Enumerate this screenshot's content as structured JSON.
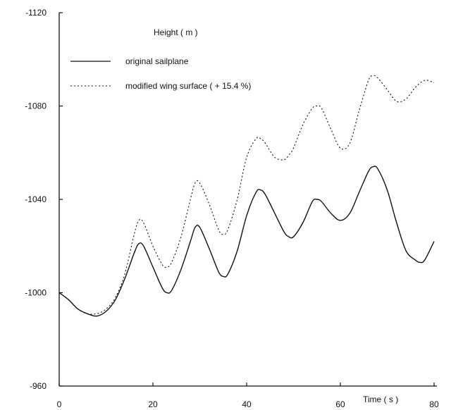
{
  "chart_data": {
    "type": "line",
    "xlabel": "Time ( s )",
    "ylabel": "Height ( m )",
    "xlim": [
      0,
      80
    ],
    "ylim": [
      -960,
      -1120
    ],
    "y_axis_direction": "up_negative",
    "xticks": [
      "0",
      "20",
      "40",
      "60",
      "80"
    ],
    "yticks": [
      "-960",
      "-1000",
      "-1040",
      "-1080",
      "-1120"
    ],
    "grid": false,
    "legend_position": "top-left",
    "series": [
      {
        "name": "original sailplane",
        "style": "solid",
        "x": [
          0,
          2,
          4,
          6,
          8,
          10,
          12,
          14,
          16,
          17,
          18,
          20,
          22,
          23,
          24,
          26,
          28,
          29,
          30,
          32,
          34,
          35,
          36,
          38,
          40,
          42,
          43,
          44,
          46,
          48,
          49,
          50,
          52,
          54,
          55,
          56,
          58,
          60,
          62,
          64,
          66,
          67,
          68,
          70,
          72,
          74,
          76,
          77,
          78,
          80
        ],
        "y": [
          -1000,
          -997,
          -993,
          -991,
          -990,
          -992,
          -997,
          -1006,
          -1017,
          -1021,
          -1020,
          -1011,
          -1002,
          -1000,
          -1001,
          -1010,
          -1022,
          -1028,
          -1028,
          -1019,
          -1009,
          -1007,
          -1008,
          -1018,
          -1033,
          -1043,
          -1044,
          -1042,
          -1034,
          -1026,
          -1024,
          -1024,
          -1030,
          -1039,
          -1040,
          -1039,
          -1034,
          -1031,
          -1034,
          -1043,
          -1052,
          -1054,
          -1053,
          -1044,
          -1030,
          -1018,
          -1014,
          -1013,
          -1014,
          -1022
        ]
      },
      {
        "name": "modified wing surface ( + 15.4 %)",
        "style": "dotted",
        "x": [
          0,
          2,
          4,
          6,
          8,
          10,
          12,
          14,
          16,
          17,
          18,
          20,
          22,
          23,
          24,
          26,
          28,
          29,
          30,
          32,
          34,
          35,
          36,
          38,
          40,
          42,
          43,
          44,
          46,
          48,
          49,
          50,
          52,
          54,
          55,
          56,
          58,
          60,
          62,
          64,
          66,
          67,
          68,
          70,
          72,
          74,
          76,
          78,
          80
        ],
        "y": [
          -1000,
          -997,
          -993,
          -991,
          -991,
          -993,
          -998,
          -1008,
          -1025,
          -1031,
          -1030,
          -1020,
          -1012,
          -1011,
          -1013,
          -1024,
          -1040,
          -1047,
          -1047,
          -1038,
          -1027,
          -1025,
          -1027,
          -1040,
          -1058,
          -1066,
          -1066,
          -1064,
          -1058,
          -1057,
          -1059,
          -1062,
          -1072,
          -1079,
          -1080,
          -1079,
          -1070,
          -1062,
          -1064,
          -1078,
          -1091,
          -1093,
          -1092,
          -1087,
          -1082,
          -1083,
          -1088,
          -1091,
          -1090
        ]
      }
    ]
  }
}
